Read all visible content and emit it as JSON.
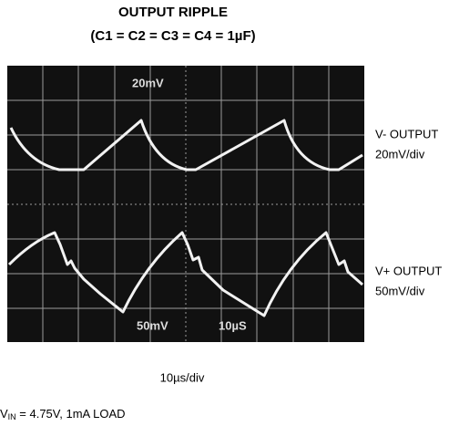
{
  "header": {
    "title": "OUTPUT RIPPLE",
    "subtitle": "(C1 = C2 = C3 = C4 = 1µF)"
  },
  "screen_labels": [
    "20mV",
    "50mV",
    "10µS"
  ],
  "traces": [
    {
      "name": "V- OUTPUT",
      "scale": "20mV/div"
    },
    {
      "name": "V+ OUTPUT",
      "scale": "50mV/div"
    }
  ],
  "footer": {
    "time_scale": "10µs/div",
    "conditions": {
      "symbol": "V",
      "subscript": "IN",
      "text": " = 4.75V, 1mA LOAD"
    }
  }
}
